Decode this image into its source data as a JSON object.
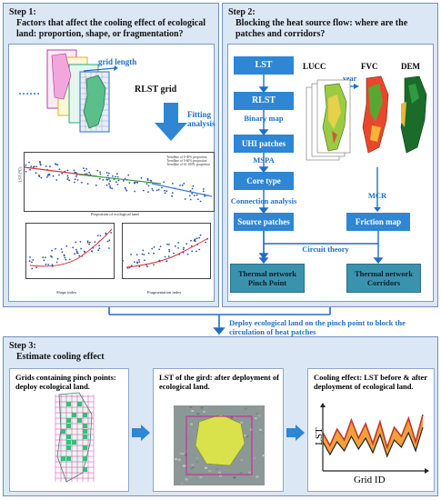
{
  "step1": {
    "heading": "Step 1:",
    "title": "Factors that affect the cooling effect of ecological land: proportion, shape, or fragmentation?",
    "grid_length": "grid length",
    "dots": "……",
    "rlst_grid": "RLST grid",
    "fitting": "Fitting analysis",
    "scatter_legend": [
      "Trendline of 0-30% proportion",
      "Trendline of 0-60% proportion",
      "Trendline of 61-100% proportion"
    ],
    "scatter_xlabel": "Proportion of ecological land",
    "scatter_ylabel": "LST (℃)",
    "shape_xlabel": "Shape index",
    "frag_xlabel": "Fragmentation index"
  },
  "step2": {
    "heading": "Step 2:",
    "title": "Blocking the heat source flow: where are the patches and corridors?",
    "lst": "LST",
    "rlst": "RLST",
    "binary_map": "Binary map",
    "uhi": "UHI patches",
    "mspa": "MSPA",
    "core": "Core type",
    "connection": "Connection analysis",
    "source": "Source patches",
    "lucc": "LUCC",
    "year": "year",
    "fvc": "FVC",
    "dem": "DEM",
    "mcr": "MCR",
    "friction": "Friction map",
    "circuit": "Circuit theory",
    "pinch": "Thermal network Pinch Point",
    "corridors": "Thermal network Corridors"
  },
  "connector": "Deploy ecological land on the pinch point to block the circulation of heat patches",
  "step3": {
    "heading": "Step 3:",
    "title": "Estimate cooling effect",
    "card1_title": "Grids containing pinch points: deploy ecological land.",
    "card2_title": "LST of the gird: after deployment of ecological land.",
    "card3_title": "Cooling effect: LST before & after deployment of ecological land.",
    "lst_axis": "LST",
    "grid_axis": "Grid ID"
  },
  "colors": {
    "panel_bg": "#dce7f5",
    "box_blue": "#2e86d4",
    "box_teal": "#3a93ad",
    "label_blue": "#1f6fc6"
  }
}
